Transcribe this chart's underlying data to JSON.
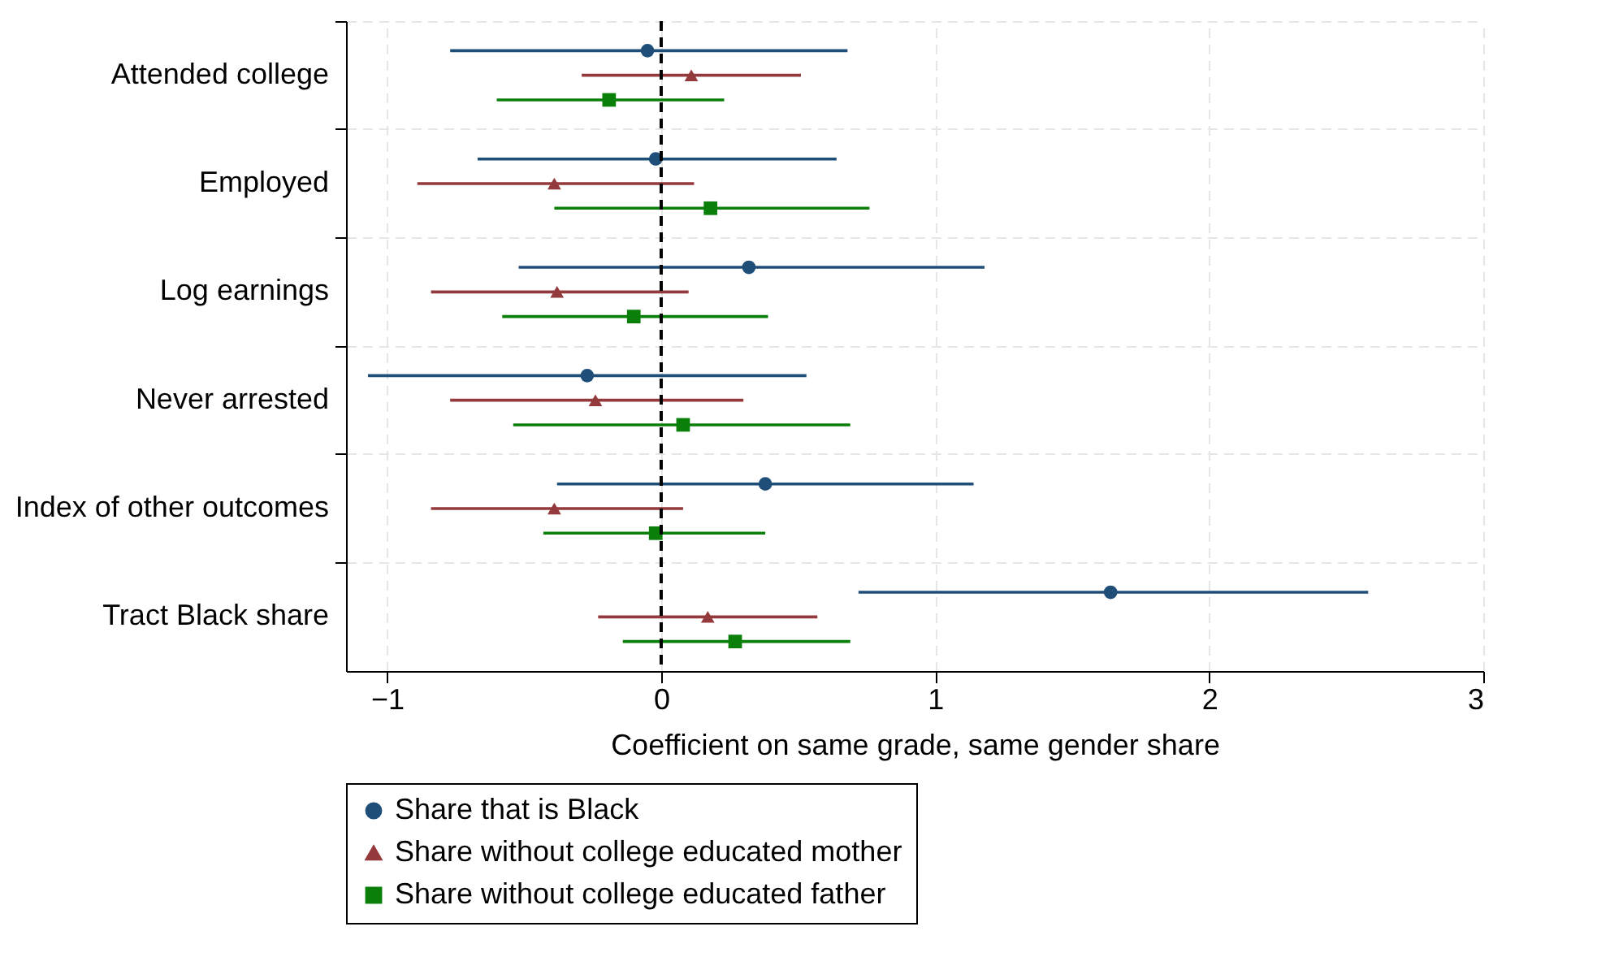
{
  "chart_data": {
    "type": "scatter",
    "orientation": "horizontal",
    "xlabel": "Coefficient on same grade, same gender share",
    "categories": [
      "Attended college",
      "Employed",
      "Log earnings",
      "Never arrested",
      "Index of other outcomes",
      "Tract Black share"
    ],
    "series": [
      {
        "name": "Share that is Black",
        "color": "#1f4e79",
        "marker": "circle",
        "values": [
          -0.05,
          -0.02,
          0.32,
          -0.27,
          0.38,
          1.64
        ],
        "errors": [
          [
            -0.77,
            0.68
          ],
          [
            -0.67,
            0.64
          ],
          [
            -0.52,
            1.18
          ],
          [
            -1.07,
            0.53
          ],
          [
            -0.38,
            1.14
          ],
          [
            0.72,
            2.58
          ]
        ]
      },
      {
        "name": "Share without college educated mother",
        "color": "#943a3c",
        "marker": "triangle",
        "values": [
          0.11,
          -0.39,
          -0.38,
          -0.24,
          -0.39,
          0.17
        ],
        "errors": [
          [
            -0.29,
            0.51
          ],
          [
            -0.89,
            0.12
          ],
          [
            -0.84,
            0.1
          ],
          [
            -0.77,
            0.3
          ],
          [
            -0.84,
            0.08
          ],
          [
            -0.23,
            0.57
          ]
        ]
      },
      {
        "name": "Share without college educated father",
        "color": "#0a800a",
        "marker": "square",
        "values": [
          -0.19,
          0.18,
          -0.1,
          0.08,
          -0.02,
          0.27
        ],
        "errors": [
          [
            -0.6,
            0.23
          ],
          [
            -0.39,
            0.76
          ],
          [
            -0.58,
            0.39
          ],
          [
            -0.54,
            0.69
          ],
          [
            -0.43,
            0.38
          ],
          [
            -0.14,
            0.69
          ]
        ]
      }
    ],
    "xlim": [
      -1.15,
      3
    ],
    "xticks": [
      -1,
      0,
      1,
      2,
      3
    ],
    "ref_lines": [
      {
        "axis": "x",
        "value": 0,
        "color": "#000000",
        "line_style": "dashed"
      }
    ],
    "grid": true,
    "legend": "bottom"
  }
}
